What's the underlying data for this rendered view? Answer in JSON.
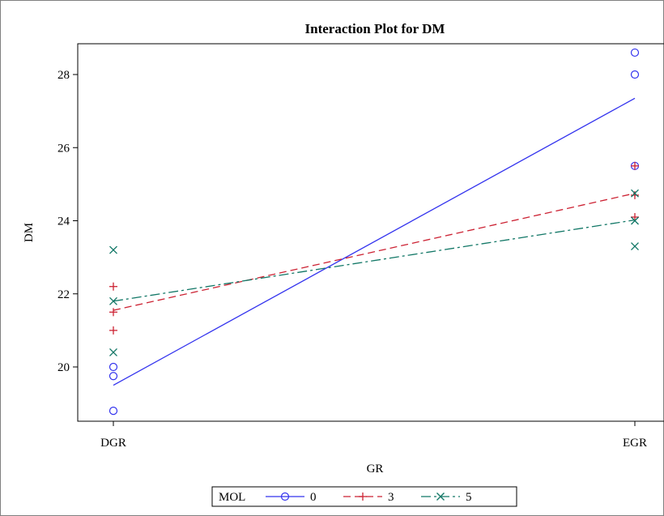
{
  "chart_data": {
    "type": "line",
    "title": "Interaction Plot for DM",
    "xlabel": "GR",
    "ylabel": "DM",
    "categories": [
      "DGR",
      "EGR"
    ],
    "y_ticks": [
      "20",
      "22",
      "24",
      "26",
      "28"
    ],
    "ylim": [
      18.5,
      29.0
    ],
    "grid": false,
    "legend": {
      "title": "MOL",
      "placement": "bottom-center",
      "entries": [
        "0",
        "3",
        "5"
      ]
    },
    "series": [
      {
        "name": "0",
        "color": "#3333ee",
        "line_style": "solid",
        "marker": "circle",
        "means": [
          19.5,
          27.35
        ],
        "points": {
          "DGR": [
            18.8,
            19.75,
            20.0
          ],
          "EGR": [
            25.5,
            28.0,
            28.6
          ]
        }
      },
      {
        "name": "3",
        "color": "#cc2233",
        "line_style": "dash",
        "marker": "plus",
        "means": [
          21.55,
          24.75
        ],
        "points": {
          "DGR": [
            21.0,
            21.5,
            22.2
          ],
          "EGR": [
            24.1,
            24.7,
            25.5
          ]
        }
      },
      {
        "name": "5",
        "color": "#117766",
        "line_style": "dashdot",
        "marker": "x",
        "means": [
          21.8,
          24.02
        ],
        "points": {
          "DGR": [
            20.4,
            21.8,
            23.2
          ],
          "EGR": [
            23.3,
            24.0,
            24.75
          ]
        }
      }
    ]
  }
}
